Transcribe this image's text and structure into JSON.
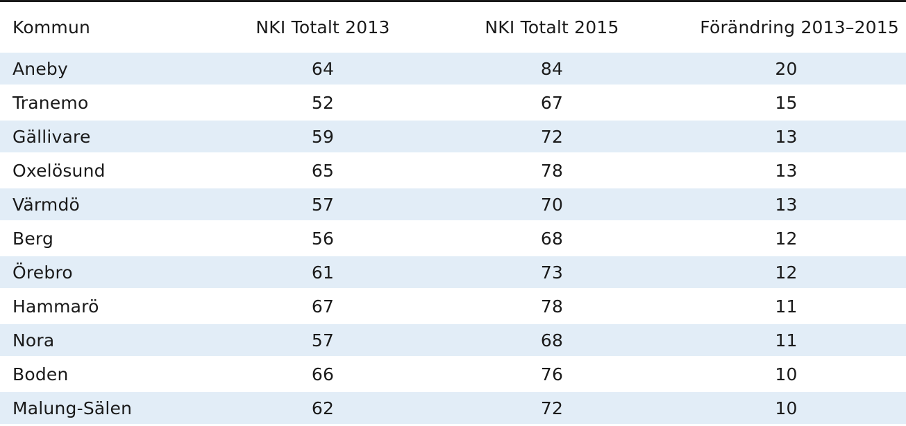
{
  "table": {
    "headers": [
      "Kommun",
      "NKI Totalt 2013",
      "NKI Totalt 2015",
      "Förändring 2013–2015"
    ],
    "rows": [
      [
        "Aneby",
        "64",
        "84",
        "20"
      ],
      [
        "Tranemo",
        "52",
        "67",
        "15"
      ],
      [
        "Gällivare",
        "59",
        "72",
        "13"
      ],
      [
        "Oxelösund",
        "65",
        "78",
        "13"
      ],
      [
        "Värmdö",
        "57",
        "70",
        "13"
      ],
      [
        "Berg",
        "56",
        "68",
        "12"
      ],
      [
        "Örebro",
        "61",
        "73",
        "12"
      ],
      [
        "Hammarö",
        "67",
        "78",
        "11"
      ],
      [
        "Nora",
        "57",
        "68",
        "11"
      ],
      [
        "Boden",
        "66",
        "76",
        "10"
      ],
      [
        "Malung-Sälen",
        "62",
        "72",
        "10"
      ]
    ]
  },
  "colors": {
    "stripe": "#e2edf7",
    "rule": "#1a1a1a",
    "text": "#1a1a1a"
  }
}
